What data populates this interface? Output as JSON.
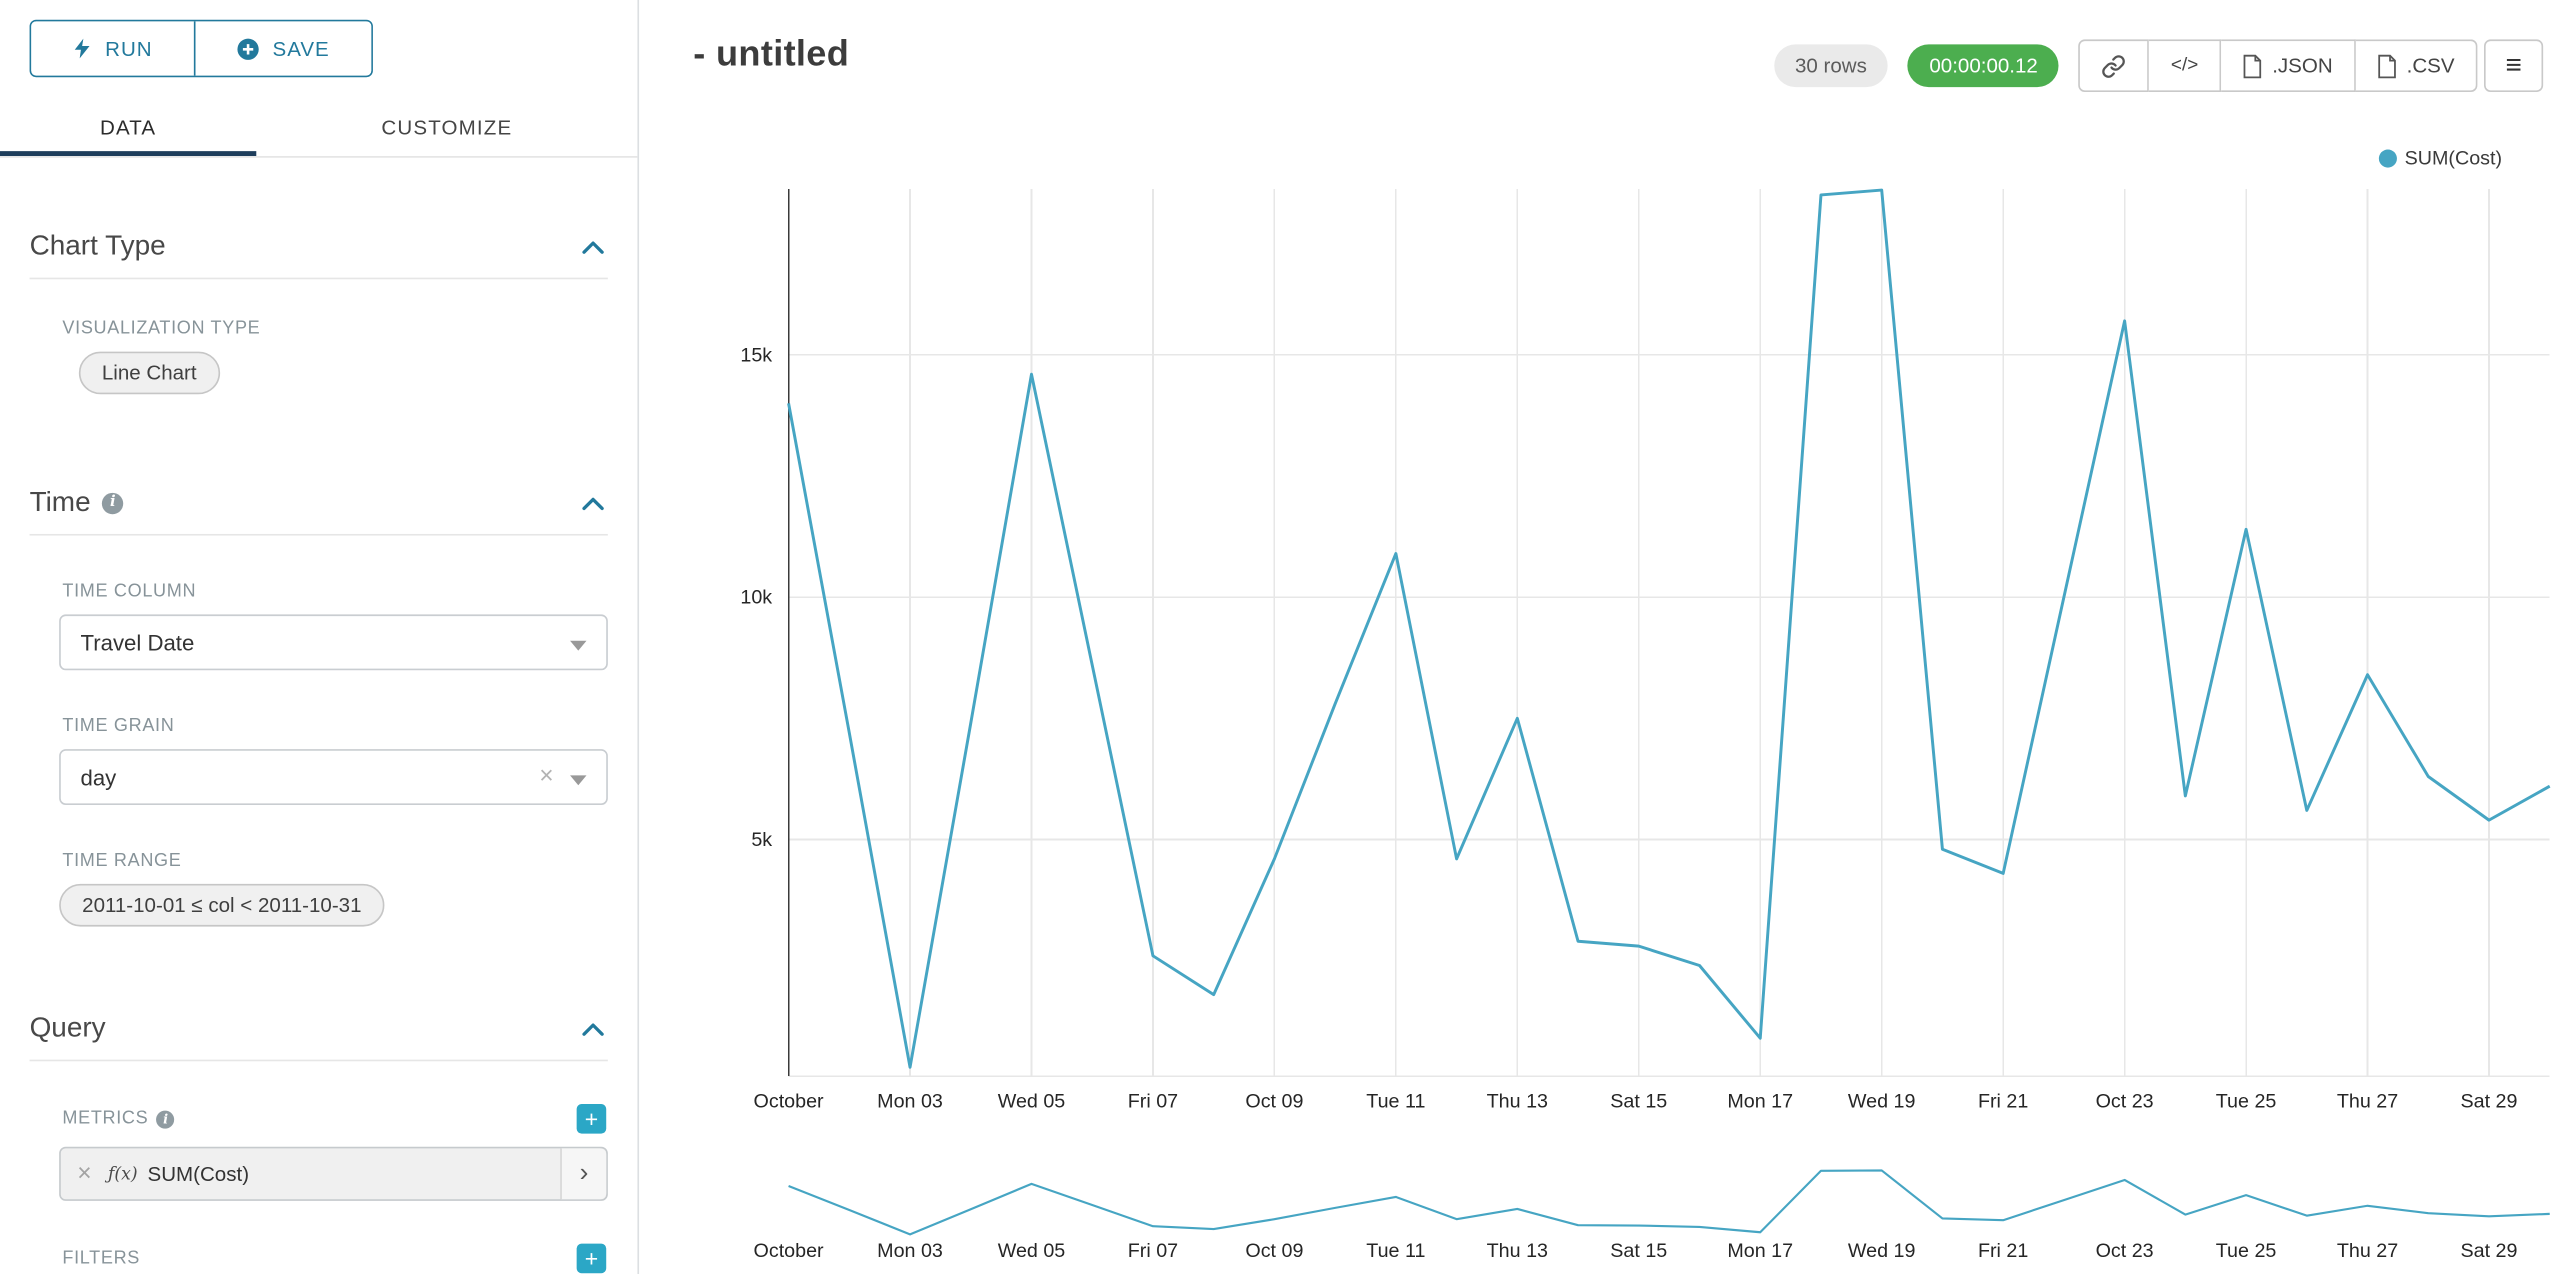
{
  "colors": {
    "accent": "#22799c",
    "plus_button": "#2ba7c6",
    "tab_underline": "#1e3e5c",
    "timer_green": "#4cae4f",
    "line": "#46a5c3"
  },
  "icons": {
    "plus": "+",
    "close": "×",
    "chevron_right": "›",
    "menu": "≡"
  },
  "panel": {
    "run_label": "RUN",
    "save_label": "SAVE",
    "tabs": [
      {
        "label": "DATA"
      },
      {
        "label": "CUSTOMIZE"
      }
    ],
    "sections": {
      "chart_type": {
        "title": "Chart Type",
        "visualization_type_label": "VISUALIZATION TYPE",
        "visualization_type_value": "Line Chart"
      },
      "time": {
        "title": "Time",
        "time_column_label": "TIME COLUMN",
        "time_column_value": "Travel Date",
        "time_grain_label": "TIME GRAIN",
        "time_grain_value": "day",
        "time_range_label": "TIME RANGE",
        "time_range_value": "2011-10-01 ≤ col < 2011-10-31"
      },
      "query": {
        "title": "Query",
        "metrics_label": "METRICS",
        "metric_prefix": "ƒ(x)",
        "metric_value": "SUM(Cost)",
        "filters_label": "FILTERS"
      }
    }
  },
  "header": {
    "title": "- untitled",
    "row_count": "30 rows",
    "timer": "00:00:00.12",
    "code_label": "</>",
    "json_label": ".JSON",
    "csv_label": ".CSV"
  },
  "legend": {
    "label": "SUM(Cost)"
  },
  "chart_data": {
    "type": "line",
    "title": "",
    "xlabel": "",
    "ylabel": "",
    "legend": [
      "SUM(Cost)"
    ],
    "legend_position": "top-right",
    "grid": true,
    "line_color": "#46a5c3",
    "ylim": [
      0,
      18600
    ],
    "y_ticks": [
      5000,
      10000,
      15000
    ],
    "y_tick_labels": [
      "5k",
      "10k",
      "15k"
    ],
    "x_tick_labels": [
      "October",
      "Mon 03",
      "Wed 05",
      "Fri 07",
      "Oct 09",
      "Tue 11",
      "Thu 13",
      "Sat 15",
      "Mon 17",
      "Wed 19",
      "Fri 21",
      "Oct 23",
      "Tue 25",
      "Thu 27",
      "Sat 29"
    ],
    "x": [
      "2011-10-01",
      "2011-10-02",
      "2011-10-03",
      "2011-10-04",
      "2011-10-05",
      "2011-10-06",
      "2011-10-07",
      "2011-10-08",
      "2011-10-09",
      "2011-10-10",
      "2011-10-11",
      "2011-10-12",
      "2011-10-13",
      "2011-10-14",
      "2011-10-15",
      "2011-10-16",
      "2011-10-17",
      "2011-10-18",
      "2011-10-19",
      "2011-10-20",
      "2011-10-21",
      "2011-10-22",
      "2011-10-23",
      "2011-10-24",
      "2011-10-25",
      "2011-10-26",
      "2011-10-27",
      "2011-10-28",
      "2011-10-29",
      "2011-10-30"
    ],
    "series": [
      {
        "name": "SUM(Cost)",
        "values": [
          14000,
          7200,
          300,
          7400,
          14600,
          8600,
          2600,
          1800,
          4600,
          7800,
          10900,
          4600,
          7500,
          2900,
          2800,
          2400,
          900,
          18300,
          18400,
          4800,
          4300,
          10000,
          15700,
          5900,
          11400,
          5600,
          8400,
          6300,
          5400,
          6100
        ]
      }
    ],
    "has_context_brush_chart": true
  }
}
